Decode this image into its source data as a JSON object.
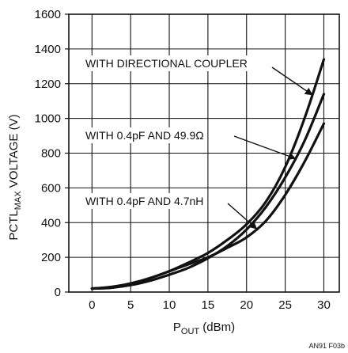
{
  "chart_data": {
    "type": "line",
    "xlabel": {
      "main": "P",
      "sub": "OUT",
      "rest": " (dBm)"
    },
    "ylabel": {
      "main": "PCTL",
      "sub": "MAX",
      "rest": " VOLTAGE (V)"
    },
    "xlim": [
      -3,
      32
    ],
    "ylim": [
      0,
      1600
    ],
    "xticks": [
      0,
      5,
      10,
      15,
      20,
      25,
      30
    ],
    "yticks": [
      0,
      200,
      400,
      600,
      800,
      1000,
      1200,
      1400,
      1600
    ],
    "grid": true,
    "series": [
      {
        "name": "WITH DIRECTIONAL COUPLER",
        "x": [
          0,
          2.5,
          5,
          7.5,
          10,
          12.5,
          15,
          17.5,
          20,
          22.5,
          25,
          27.5,
          30
        ],
        "y": [
          20,
          25,
          45,
          80,
          120,
          170,
          225,
          300,
          390,
          520,
          720,
          1000,
          1340
        ]
      },
      {
        "name": "WITH 0.4pF AND 49.9Ω",
        "x": [
          0,
          2.5,
          5,
          7.5,
          10,
          12.5,
          15,
          17.5,
          20,
          22.5,
          25,
          27.5,
          30
        ],
        "y": [
          20,
          25,
          40,
          65,
          100,
          140,
          195,
          265,
          360,
          490,
          660,
          870,
          1140
        ]
      },
      {
        "name": "WITH 0.4pF AND 4.7nH",
        "x": [
          0,
          2.5,
          5,
          7.5,
          10,
          12.5,
          15,
          17.5,
          20,
          22.5,
          25,
          27.5,
          30
        ],
        "y": [
          20,
          30,
          50,
          80,
          120,
          160,
          200,
          255,
          315,
          410,
          560,
          750,
          970
        ]
      }
    ],
    "annotations": [
      {
        "text": "WITH DIRECTIONAL COUPLER",
        "series": 0,
        "point_x": 28.5
      },
      {
        "text": "WITH 0.4pF AND 49.9Ω",
        "series": 1,
        "point_x": 26.3
      },
      {
        "text": "WITH 0.4pF AND 4.7nH",
        "series": 2,
        "point_x": 21.3
      }
    ],
    "figure_id": "AN91 F03b"
  }
}
